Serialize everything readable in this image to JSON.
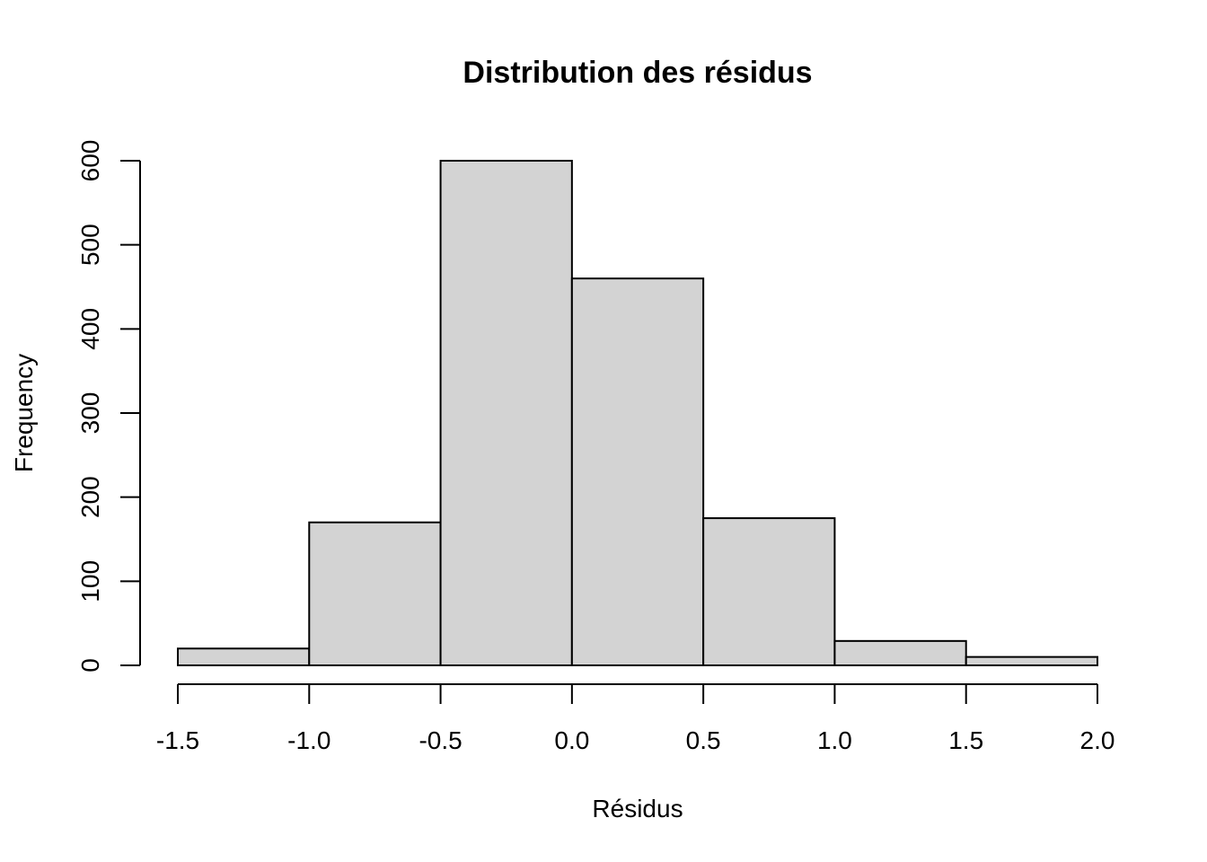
{
  "chart_data": {
    "type": "bar",
    "title": "Distribution des résidus",
    "xlabel": "Résidus",
    "ylabel": "Frequency",
    "bins": [
      {
        "from": -1.5,
        "to": -1.0,
        "value": 20
      },
      {
        "from": -1.0,
        "to": -0.5,
        "value": 170
      },
      {
        "from": -0.5,
        "to": 0.0,
        "value": 600
      },
      {
        "from": 0.0,
        "to": 0.5,
        "value": 460
      },
      {
        "from": 0.5,
        "to": 1.0,
        "value": 175
      },
      {
        "from": 1.0,
        "to": 1.5,
        "value": 29
      },
      {
        "from": 1.5,
        "to": 2.0,
        "value": 10
      }
    ],
    "xticks": [
      "-1.5",
      "-1.0",
      "-0.5",
      "0.0",
      "0.5",
      "1.0",
      "1.5",
      "2.0"
    ],
    "yticks": [
      "0",
      "100",
      "200",
      "300",
      "400",
      "500",
      "600"
    ],
    "xlim": [
      -1.5,
      2.0
    ],
    "ylim": [
      0,
      600
    ],
    "bar_color": "#d3d3d3",
    "grid": false
  }
}
